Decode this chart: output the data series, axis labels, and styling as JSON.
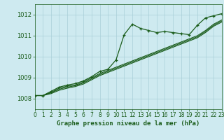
{
  "background_color": "#ceeaf0",
  "grid_color": "#aad0d8",
  "line_color": "#1a5c1a",
  "title": "Graphe pression niveau de la mer (hPa)",
  "xlim": [
    0,
    23
  ],
  "ylim": [
    1007.5,
    1012.5
  ],
  "yticks": [
    1008,
    1009,
    1010,
    1011,
    1012
  ],
  "xticks": [
    0,
    1,
    2,
    3,
    4,
    5,
    6,
    7,
    8,
    9,
    10,
    11,
    12,
    13,
    14,
    15,
    16,
    17,
    18,
    19,
    20,
    21,
    22,
    23
  ],
  "main_line": [
    1008.15,
    1008.15,
    1008.35,
    1008.55,
    1008.65,
    1008.72,
    1008.85,
    1009.05,
    1009.3,
    1009.4,
    1009.85,
    1011.05,
    1011.55,
    1011.35,
    1011.25,
    1011.15,
    1011.2,
    1011.15,
    1011.1,
    1011.05,
    1011.5,
    1011.85,
    1011.95,
    1012.05
  ],
  "line2": [
    1008.15,
    1008.15,
    1008.3,
    1008.5,
    1008.6,
    1008.65,
    1008.8,
    1009.0,
    1009.2,
    1009.35,
    1009.5,
    1009.65,
    1009.8,
    1009.95,
    1010.1,
    1010.25,
    1010.4,
    1010.55,
    1010.7,
    1010.85,
    1011.0,
    1011.25,
    1011.55,
    1011.75
  ],
  "line3": [
    1008.15,
    1008.15,
    1008.28,
    1008.45,
    1008.55,
    1008.62,
    1008.75,
    1008.95,
    1009.15,
    1009.3,
    1009.45,
    1009.6,
    1009.75,
    1009.9,
    1010.05,
    1010.2,
    1010.35,
    1010.5,
    1010.65,
    1010.8,
    1010.95,
    1011.2,
    1011.5,
    1011.7
  ],
  "line4": [
    1008.15,
    1008.15,
    1008.24,
    1008.4,
    1008.5,
    1008.58,
    1008.7,
    1008.9,
    1009.1,
    1009.25,
    1009.4,
    1009.55,
    1009.7,
    1009.85,
    1010.0,
    1010.15,
    1010.3,
    1010.45,
    1010.6,
    1010.75,
    1010.9,
    1011.15,
    1011.45,
    1011.65
  ],
  "title_fontsize": 6.5,
  "tick_fontsize": 5.5,
  "ytick_fontsize": 6.0
}
